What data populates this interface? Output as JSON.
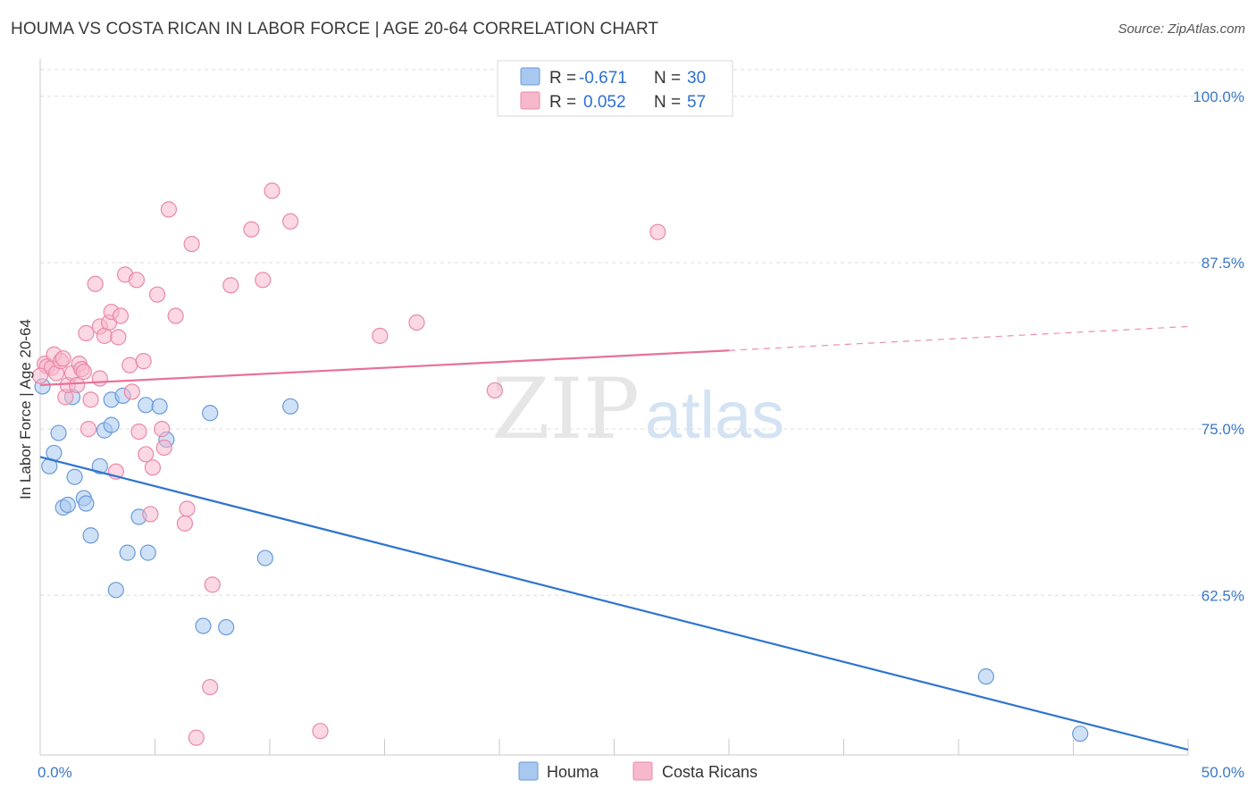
{
  "header": {
    "title": "HOUMA VS COSTA RICAN IN LABOR FORCE | AGE 20-64 CORRELATION CHART",
    "source": "Source: ZipAtlas.com"
  },
  "watermark": {
    "zip": "ZIP",
    "atlas": "atlas"
  },
  "legend": {
    "houma": {
      "r_label": "R =",
      "r_value": "-0.671",
      "n_label": "N =",
      "n_value": "30"
    },
    "costa": {
      "r_label": "R =",
      "r_value": "0.052",
      "n_label": "N =",
      "n_value": "57"
    }
  },
  "bottom_legend": {
    "houma": "Houma",
    "costa": "Costa Ricans"
  },
  "colors": {
    "houma_fill": "#a8c8f0",
    "houma_stroke": "#6a9ad8",
    "houma_line": "#2f74d0",
    "costa_fill": "#f7b8cc",
    "costa_stroke": "#e889a8",
    "costa_line": "#e8709a",
    "grid": "#dddddd",
    "axis_label": "#3b78c8"
  },
  "chart_data": {
    "type": "scatter",
    "title": "HOUMA VS COSTA RICAN IN LABOR FORCE | AGE 20-64 CORRELATION CHART",
    "xlabel": "",
    "ylabel": "In Labor Force | Age 20-64",
    "xlim": [
      0,
      50
    ],
    "ylim": [
      50.5,
      102
    ],
    "x_tick_labels": [
      "0.0%",
      "50.0%"
    ],
    "y_ticks": [
      62.5,
      75.0,
      87.5,
      100.0
    ],
    "y_tick_labels": [
      "62.5%",
      "75.0%",
      "87.5%",
      "100.0%"
    ],
    "series": [
      {
        "name": "Houma",
        "points": [
          [
            0.1,
            78.2
          ],
          [
            0.6,
            73.2
          ],
          [
            0.8,
            74.7
          ],
          [
            0.4,
            72.2
          ],
          [
            1.0,
            69.1
          ],
          [
            1.2,
            69.3
          ],
          [
            1.5,
            71.4
          ],
          [
            1.4,
            77.4
          ],
          [
            1.9,
            69.8
          ],
          [
            2.0,
            69.4
          ],
          [
            2.2,
            67.0
          ],
          [
            2.8,
            74.9
          ],
          [
            3.1,
            77.2
          ],
          [
            3.1,
            75.3
          ],
          [
            3.6,
            77.5
          ],
          [
            3.3,
            62.9
          ],
          [
            3.8,
            65.7
          ],
          [
            4.3,
            68.4
          ],
          [
            4.6,
            76.8
          ],
          [
            4.7,
            65.7
          ],
          [
            5.2,
            76.7
          ],
          [
            5.5,
            74.2
          ],
          [
            7.1,
            60.2
          ],
          [
            7.4,
            76.2
          ],
          [
            8.1,
            60.1
          ],
          [
            9.8,
            65.3
          ],
          [
            10.9,
            76.7
          ],
          [
            2.6,
            72.2
          ],
          [
            41.2,
            56.4
          ],
          [
            45.3,
            52.1
          ]
        ],
        "trend": {
          "x": [
            0,
            50
          ],
          "y": [
            72.9,
            50.9
          ]
        }
      },
      {
        "name": "Costa Ricans",
        "points": [
          [
            0.2,
            79.9
          ],
          [
            0.3,
            79.7
          ],
          [
            0.5,
            79.6
          ],
          [
            0.6,
            80.6
          ],
          [
            0.7,
            79.2
          ],
          [
            0.9,
            80.1
          ],
          [
            1.0,
            80.3
          ],
          [
            1.1,
            77.4
          ],
          [
            1.2,
            78.3
          ],
          [
            1.4,
            79.2
          ],
          [
            1.6,
            78.3
          ],
          [
            1.7,
            79.9
          ],
          [
            1.8,
            79.5
          ],
          [
            1.9,
            79.3
          ],
          [
            2.0,
            82.2
          ],
          [
            2.1,
            75.0
          ],
          [
            2.2,
            77.2
          ],
          [
            2.4,
            85.9
          ],
          [
            2.6,
            78.8
          ],
          [
            2.6,
            82.7
          ],
          [
            2.8,
            82.0
          ],
          [
            3.0,
            83.0
          ],
          [
            3.1,
            83.8
          ],
          [
            3.3,
            71.8
          ],
          [
            3.4,
            81.9
          ],
          [
            3.5,
            83.5
          ],
          [
            3.7,
            86.6
          ],
          [
            3.9,
            79.8
          ],
          [
            4.0,
            77.8
          ],
          [
            4.2,
            86.2
          ],
          [
            4.3,
            74.8
          ],
          [
            4.5,
            80.1
          ],
          [
            4.6,
            73.1
          ],
          [
            4.8,
            68.6
          ],
          [
            4.9,
            72.1
          ],
          [
            5.1,
            85.1
          ],
          [
            5.3,
            75.0
          ],
          [
            5.4,
            73.6
          ],
          [
            5.6,
            91.5
          ],
          [
            5.9,
            83.5
          ],
          [
            6.3,
            67.9
          ],
          [
            6.4,
            69.0
          ],
          [
            6.6,
            88.9
          ],
          [
            6.8,
            51.8
          ],
          [
            7.5,
            63.3
          ],
          [
            7.4,
            55.6
          ],
          [
            8.3,
            85.8
          ],
          [
            9.2,
            90.0
          ],
          [
            9.7,
            86.2
          ],
          [
            10.1,
            92.9
          ],
          [
            10.9,
            90.6
          ],
          [
            12.2,
            52.3
          ],
          [
            14.8,
            82.0
          ],
          [
            16.4,
            83.0
          ],
          [
            19.8,
            77.9
          ],
          [
            26.9,
            89.8
          ],
          [
            0.0,
            79.0
          ]
        ],
        "trend_solid": {
          "x": [
            0,
            30
          ],
          "y": [
            78.3,
            80.9
          ]
        },
        "trend_dashed": {
          "x": [
            30,
            50
          ],
          "y": [
            80.9,
            82.7
          ]
        }
      }
    ],
    "legend_position": "top-center",
    "grid": true
  }
}
